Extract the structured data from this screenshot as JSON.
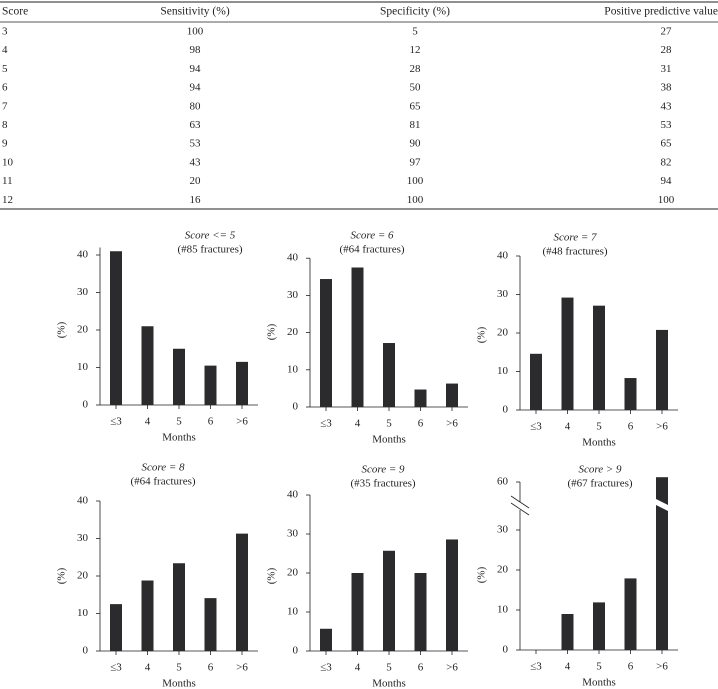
{
  "table": {
    "header": [
      "Score",
      "Sensitivity (%)",
      "Specificity (%)",
      "Positive predictive value"
    ],
    "rows": [
      [
        "3",
        "100",
        "5",
        "27"
      ],
      [
        "4",
        "98",
        "12",
        "28"
      ],
      [
        "5",
        "94",
        "28",
        "31"
      ],
      [
        "6",
        "94",
        "50",
        "38"
      ],
      [
        "7",
        "80",
        "65",
        "43"
      ],
      [
        "8",
        "63",
        "81",
        "53"
      ],
      [
        "9",
        "53",
        "90",
        "65"
      ],
      [
        "10",
        "43",
        "97",
        "82"
      ],
      [
        "11",
        "20",
        "100",
        "94"
      ],
      [
        "12",
        "16",
        "100",
        "100"
      ]
    ]
  },
  "chart_data": [
    {
      "type": "bar",
      "title": "Score <= 5",
      "subtitle": "(#85 fractures)",
      "categories": [
        "≤3",
        "4",
        "5",
        "6",
        ">6"
      ],
      "values": [
        41,
        21,
        15,
        10.5,
        11.5
      ],
      "color": "#2b2b2d",
      "ylim": [
        0,
        42
      ],
      "yticks": [
        0,
        10,
        20,
        30,
        40
      ],
      "x_label": "Months",
      "y_label": "(%)"
    },
    {
      "type": "bar",
      "title": "Score = 6",
      "subtitle": "(#64 fractures)",
      "categories": [
        "≤3",
        "4",
        "5",
        "6",
        ">6"
      ],
      "values": [
        34.4,
        37.5,
        17.2,
        4.7,
        6.3
      ],
      "color": "#2b2b2d",
      "ylim": [
        0,
        40
      ],
      "yticks": [
        0,
        10,
        20,
        30,
        40
      ],
      "x_label": "Months",
      "y_label": "(%)"
    },
    {
      "type": "bar",
      "title": "Score = 7",
      "subtitle": "(#48 fractures)",
      "categories": [
        "≤3",
        "4",
        "5",
        "6",
        ">6"
      ],
      "values": [
        14.6,
        29.2,
        27.1,
        8.3,
        20.8
      ],
      "color": "#2b2b2d",
      "ylim": [
        0,
        40
      ],
      "yticks": [
        0,
        10,
        20,
        30,
        40
      ],
      "x_label": "Months",
      "y_label": "(%)"
    },
    {
      "type": "bar",
      "title": "Score = 8",
      "subtitle": "(#64 fractures)",
      "categories": [
        "≤3",
        "4",
        "5",
        "6",
        ">6"
      ],
      "values": [
        12.5,
        18.8,
        23.4,
        14.1,
        31.3
      ],
      "color": "#2b2b2d",
      "ylim": [
        0,
        40
      ],
      "yticks": [
        0,
        10,
        20,
        30,
        40
      ],
      "x_label": "Months",
      "y_label": "(%)"
    },
    {
      "type": "bar",
      "title": "Score = 9",
      "subtitle": "(#35 fractures)",
      "categories": [
        "≤3",
        "4",
        "5",
        "6",
        ">6"
      ],
      "values": [
        5.7,
        20,
        25.7,
        20,
        28.6
      ],
      "color": "#2b2b2d",
      "ylim": [
        0,
        40
      ],
      "yticks": [
        0,
        10,
        20,
        30,
        40
      ],
      "x_label": "Months",
      "y_label": "(%)"
    },
    {
      "type": "bar",
      "title": "Score > 9",
      "subtitle": "(#67 fractures)",
      "categories": [
        "≤3",
        "4",
        "5",
        "6",
        ">6"
      ],
      "values": [
        0,
        9,
        11.9,
        17.9,
        61.2
      ],
      "color": "#2b2b2d",
      "ylim": [
        0,
        60
      ],
      "yticks": [
        0,
        10,
        20,
        30,
        60
      ],
      "y_break": [
        30,
        60
      ],
      "x_label": "Months",
      "y_label": "(%)"
    }
  ]
}
